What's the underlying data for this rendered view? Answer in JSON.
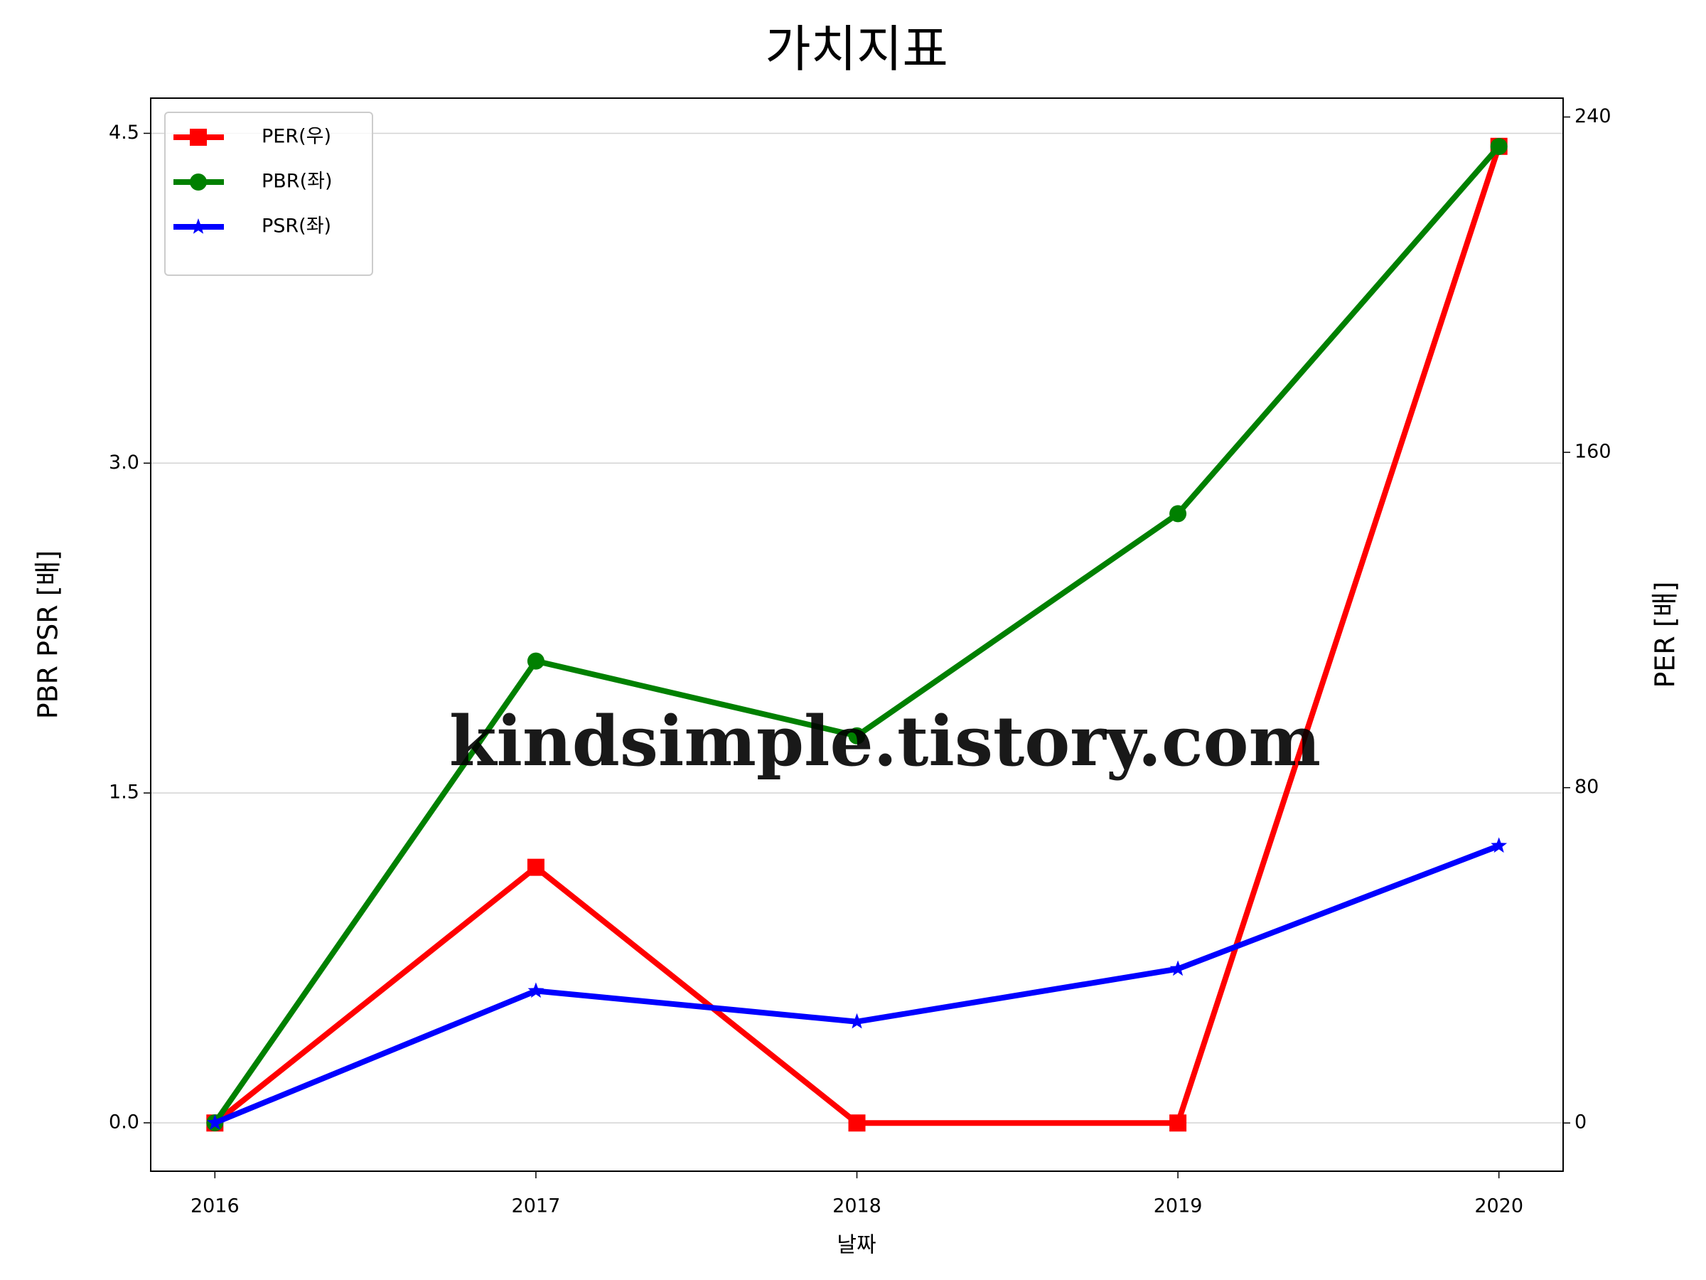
{
  "chart_data": {
    "type": "line",
    "title": "가치지표",
    "xlabel": "날짜",
    "ylabel": "PBR PSR [배]",
    "y2label": "PER [배]",
    "ylabel_color": "#008000",
    "y2label_color": "#ff0000",
    "x": [
      2016,
      2017,
      2018,
      2019,
      2020
    ],
    "xlim": [
      2015.8,
      2020.2
    ],
    "xticks": [
      2016,
      2017,
      2018,
      2019,
      2020
    ],
    "ylim": [
      -0.22,
      4.66
    ],
    "yticks": [
      {
        "value": 0,
        "label": "0.0"
      },
      1.5,
      {
        "value": 3,
        "label": "3.0"
      },
      4.5
    ],
    "y2lim": [
      -11.5,
      244.5
    ],
    "y2ticks": [
      0,
      80,
      160,
      240
    ],
    "grid": true,
    "legend": "upper-left",
    "watermark": "kindsimple.tistory.com",
    "series": [
      {
        "name": "PER(우)",
        "color": "#ff0000",
        "marker": "square",
        "axis": "y2",
        "values": [
          0,
          61,
          0,
          0,
          233
        ]
      },
      {
        "name": "PBR(좌)",
        "color": "#008000",
        "marker": "circle",
        "values": [
          0,
          2.1,
          1.76,
          2.77,
          4.44
        ]
      },
      {
        "name": "PSR(좌)",
        "color": "#0000ff",
        "marker": "star",
        "values": [
          0,
          0.6,
          0.46,
          0.7,
          1.26
        ]
      }
    ]
  }
}
